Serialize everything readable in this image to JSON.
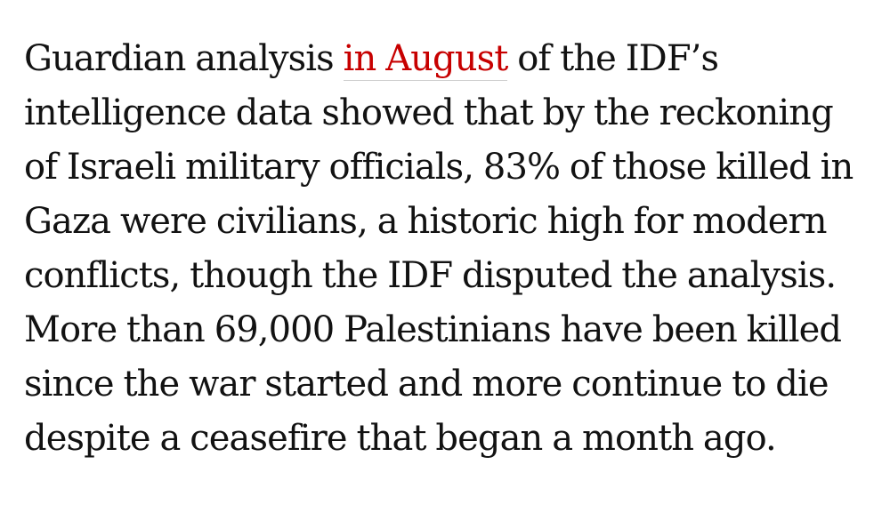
{
  "article": {
    "text_before_link": "Guardian analysis ",
    "link_label": "in August",
    "text_after_link": " of the IDF’s intelligence data showed that by the reckoning of Israeli military officials, 83% of those killed in Gaza were civilians, a historic high for modern conflicts, though the IDF disputed the analysis. More than 69,000 Palestinians have been killed since the war started and more continue to die despite a ceasefire that began a month ago."
  },
  "colors": {
    "body_text": "#121212",
    "link": "#c70000",
    "link_underline": "#cfcfcf",
    "background": "#ffffff"
  }
}
